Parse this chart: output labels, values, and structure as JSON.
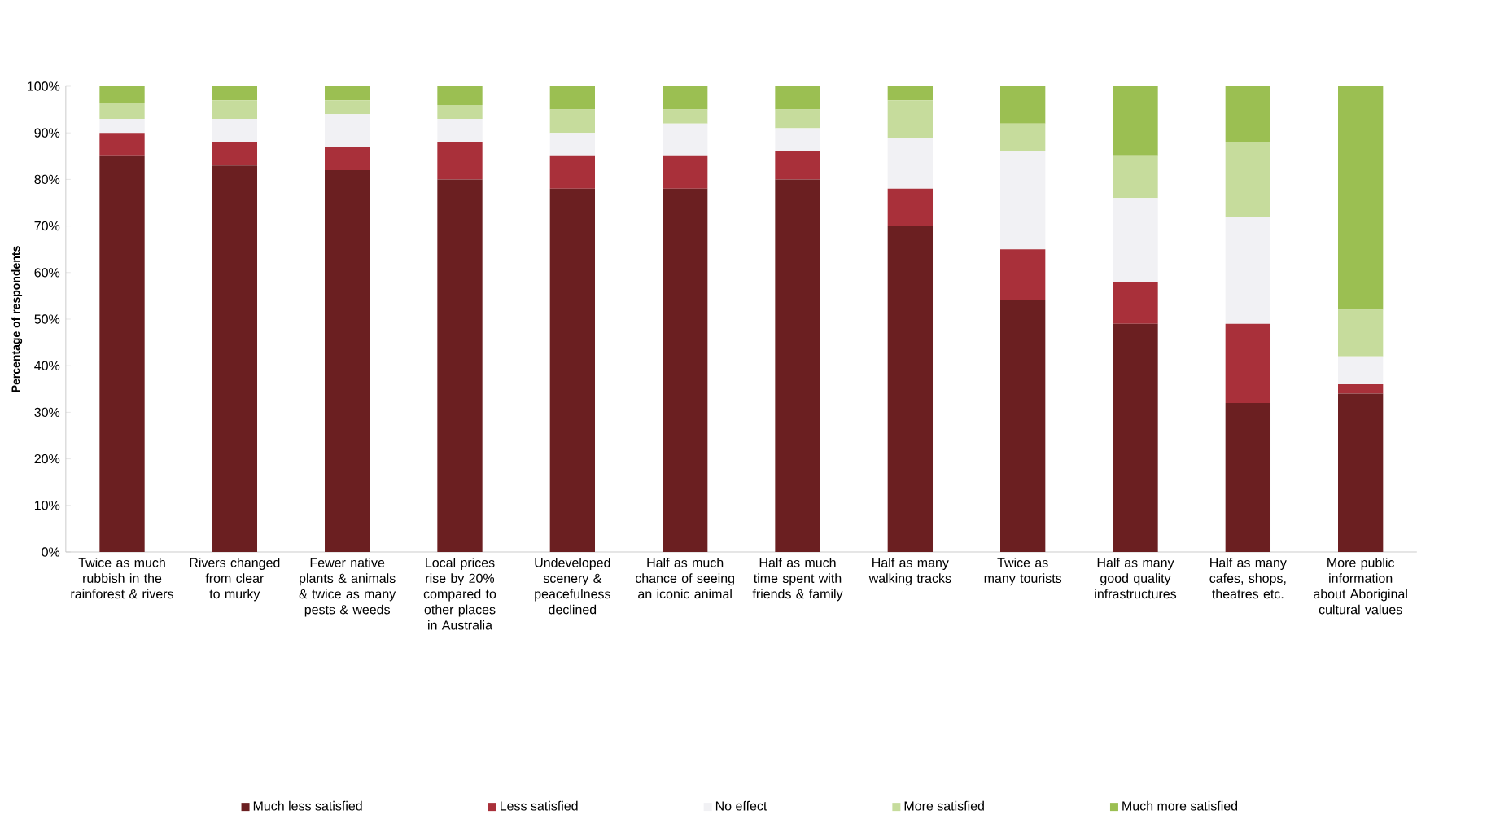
{
  "chart_data": {
    "type": "bar",
    "stacked": true,
    "ylabel": "Percentage of respondents",
    "categories": [
      "Twice as much rubbish in the rainforest & rivers",
      "Rivers changed from clear to murky",
      "Fewer native plants & animals & twice as many pests & weeds",
      "Local prices rise by 20% compared to other places in Australia",
      "Undeveloped scenery & peacefulness declined",
      "Half as much chance of seeing an iconic animal",
      "Half as much time spent with friends & family",
      "Half as many walking tracks",
      "Twice as many tourists",
      "Half as many good quality infrastructures",
      "Half as many cafes, shops, theatres etc.",
      "More public information about Aboriginal cultural values"
    ],
    "series": [
      {
        "name": "Much less satisfied",
        "color": "#6b1f21",
        "values": [
          85,
          83,
          82,
          80,
          78,
          78,
          80,
          70,
          54,
          49,
          32,
          34
        ]
      },
      {
        "name": "Less satisfied",
        "color": "#a9303a",
        "values": [
          5,
          5,
          5,
          8,
          7,
          7,
          6,
          8,
          11,
          9,
          17,
          2
        ]
      },
      {
        "name": "No effect",
        "color": "#f1f1f4",
        "values": [
          3,
          5,
          7,
          5,
          5,
          7,
          5,
          11,
          21,
          18,
          23,
          6
        ]
      },
      {
        "name": "More satisfied",
        "color": "#c6dc9c",
        "values": [
          3.5,
          4,
          3,
          3,
          5,
          3,
          4,
          8,
          6,
          9,
          16,
          10
        ]
      },
      {
        "name": "Much more satisfied",
        "color": "#9bbf52",
        "values": [
          3.5,
          3,
          3,
          4,
          5,
          5,
          5,
          3,
          8,
          15,
          12,
          48
        ]
      }
    ],
    "ylim": [
      0,
      100
    ],
    "yticks": [
      {
        "value": 0,
        "label": "0%"
      },
      {
        "value": 10,
        "label": "10%"
      },
      {
        "value": 20,
        "label": "20%"
      },
      {
        "value": 30,
        "label": "30%"
      },
      {
        "value": 40,
        "label": "40%"
      },
      {
        "value": 50,
        "label": "50%"
      },
      {
        "value": 60,
        "label": "60%"
      },
      {
        "value": 70,
        "label": "70%"
      },
      {
        "value": 80,
        "label": "80%"
      },
      {
        "value": 90,
        "label": "90%"
      },
      {
        "value": 100,
        "label": "100%"
      }
    ],
    "legend": "bottom"
  }
}
